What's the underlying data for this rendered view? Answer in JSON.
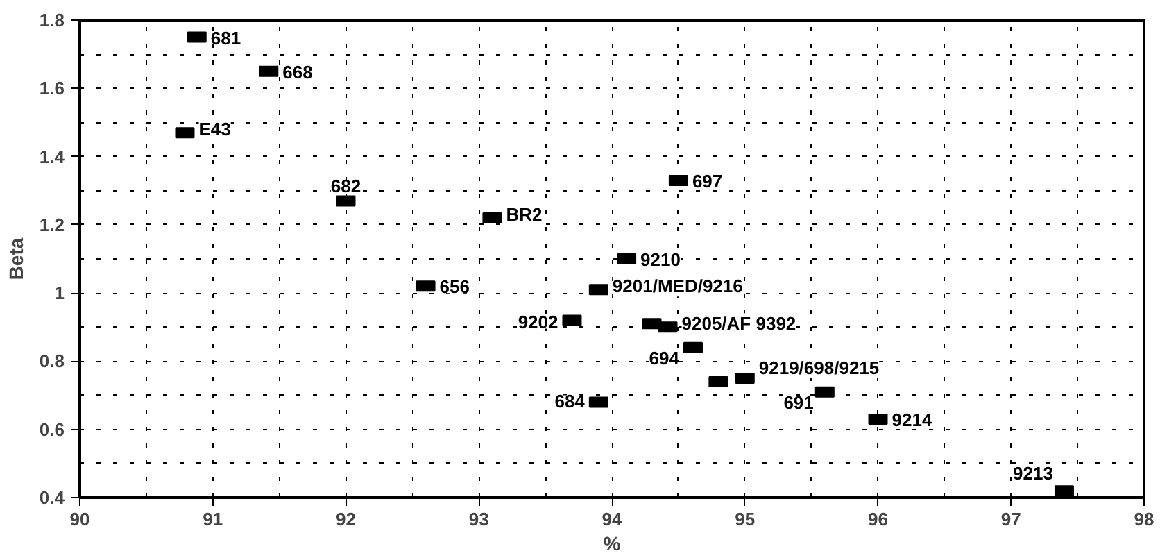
{
  "chart_data": {
    "type": "scatter",
    "xlabel": "%",
    "ylabel": "Beta",
    "x": [
      90.88,
      91.42,
      90.79,
      92.0,
      93.1,
      92.6,
      94.5,
      94.11,
      93.9,
      93.7,
      94.3,
      94.42,
      94.61,
      93.9,
      94.8,
      95.0,
      95.6,
      96.0,
      97.4
    ],
    "values": [
      1.75,
      1.65,
      1.47,
      1.27,
      1.22,
      1.02,
      1.33,
      1.1,
      1.01,
      0.92,
      0.91,
      0.9,
      0.84,
      0.68,
      0.74,
      0.75,
      0.71,
      0.63,
      0.42
    ],
    "annotations": [
      {
        "text": "681",
        "x": 90.88,
        "y": 1.75
      },
      {
        "text": "668",
        "x": 91.42,
        "y": 1.65
      },
      {
        "text": "E43",
        "x": 90.79,
        "y": 1.47
      },
      {
        "text": "682",
        "x": 92.0,
        "y": 1.27
      },
      {
        "text": "BR2",
        "x": 93.1,
        "y": 1.22
      },
      {
        "text": "656",
        "x": 92.6,
        "y": 1.02
      },
      {
        "text": "697",
        "x": 94.5,
        "y": 1.33
      },
      {
        "text": "9210",
        "x": 94.11,
        "y": 1.1
      },
      {
        "text": "9201/MED/9216",
        "x": 93.9,
        "y": 1.01
      },
      {
        "text": "9202",
        "x": 93.7,
        "y": 0.92
      },
      {
        "text": "9205/AF 9392",
        "x": 94.42,
        "y": 0.9
      },
      {
        "text": "694",
        "x": 94.61,
        "y": 0.84
      },
      {
        "text": "684",
        "x": 93.9,
        "y": 0.68
      },
      {
        "text": "9219/698/9215",
        "x": 95.0,
        "y": 0.75
      },
      {
        "text": "691",
        "x": 95.6,
        "y": 0.71
      },
      {
        "text": "9214",
        "x": 96.0,
        "y": 0.63
      },
      {
        "text": "9213",
        "x": 97.4,
        "y": 0.42
      }
    ],
    "color": "#000000",
    "marker": "square",
    "xlim": [
      90,
      98
    ],
    "xticks": [
      90,
      91,
      92,
      93,
      94,
      95,
      96,
      97,
      98
    ],
    "ylim": [
      0.4,
      1.8
    ],
    "yticks": [
      0.4,
      0.6,
      0.8,
      1,
      1.2,
      1.4,
      1.6,
      1.8
    ],
    "grid": true
  }
}
